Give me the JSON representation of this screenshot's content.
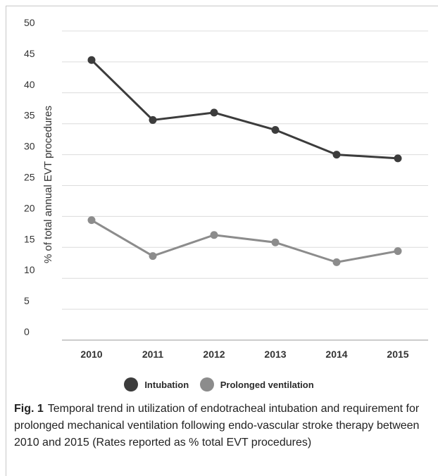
{
  "chart_data": {
    "type": "line",
    "title": "",
    "xlabel": "",
    "ylabel": "% of total annual EVT procedures",
    "x": [
      "2010",
      "2011",
      "2012",
      "2013",
      "2014",
      "2015"
    ],
    "ylim": [
      0,
      50
    ],
    "yticks": [
      "0",
      "5",
      "10",
      "15",
      "20",
      "25",
      "30",
      "35",
      "40",
      "45",
      "50"
    ],
    "grid": true,
    "legend": "bottom-center",
    "series": [
      {
        "name": "Intubation",
        "values": [
          45.3,
          35.6,
          36.8,
          34.0,
          30.0,
          29.4
        ],
        "color": "#3c3c3c"
      },
      {
        "name": "Prolonged ventilation",
        "values": [
          19.4,
          13.6,
          17.0,
          15.8,
          12.6,
          14.4
        ],
        "color": "#8c8c8c"
      }
    ]
  },
  "caption": {
    "label": "Fig. 1",
    "text": "Temporal trend in utilization of endotracheal intubation and requirement for prolonged mechanical ventilation following endo-vascular stroke therapy between 2010 and 2015 (Rates reported as  % total EVT procedures)"
  }
}
